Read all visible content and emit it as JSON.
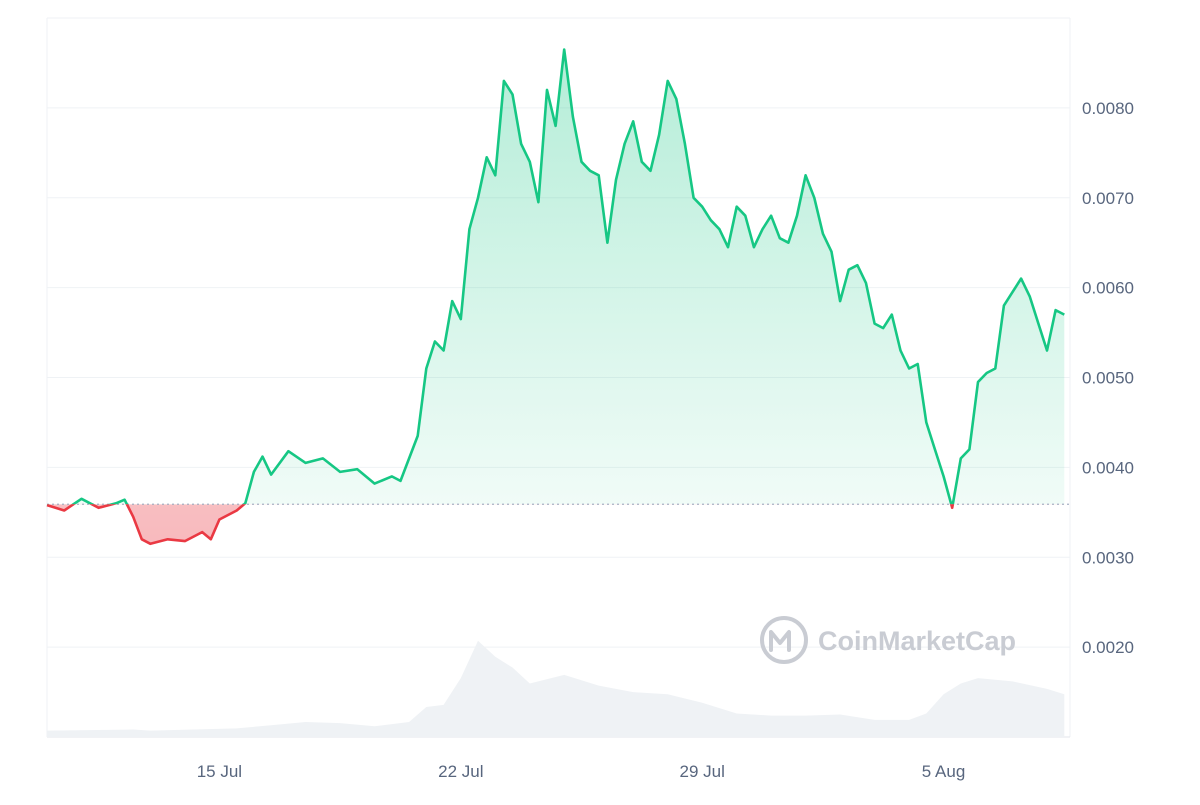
{
  "chart_data": {
    "type": "line",
    "title": "",
    "xlabel": "",
    "ylabel": "",
    "x_range": [
      "2024-07-10",
      "2024-08-08"
    ],
    "ylim": [
      0.001,
      0.009
    ],
    "y_ticks": [
      "0.0020",
      "0.0030",
      "0.0040",
      "0.0050",
      "0.0060",
      "0.0070",
      "0.0080"
    ],
    "x_ticks": [
      {
        "date": "2024-07-15",
        "label": "15 Jul"
      },
      {
        "date": "2024-07-22",
        "label": "22 Jul"
      },
      {
        "date": "2024-07-29",
        "label": "29 Jul"
      },
      {
        "date": "2024-08-05",
        "label": "5 Aug"
      }
    ],
    "baseline": 0.00359,
    "grid": true,
    "colors": {
      "up": "#16c784",
      "down": "#ea3943",
      "volume": "#eff2f5",
      "grid": "#eff2f5",
      "baseline": "#a6b0c3"
    },
    "watermark": "CoinMarketCap",
    "series": [
      {
        "points": [
          [
            "2024-07-10 00:00",
            0.00358
          ],
          [
            "2024-07-10 12:00",
            0.00352
          ],
          [
            "2024-07-11 00:00",
            0.00365
          ],
          [
            "2024-07-11 12:00",
            0.00355
          ],
          [
            "2024-07-12 00:00",
            0.0036
          ],
          [
            "2024-07-12 06:00",
            0.00364
          ],
          [
            "2024-07-12 12:00",
            0.00345
          ],
          [
            "2024-07-12 18:00",
            0.0032
          ],
          [
            "2024-07-13 00:00",
            0.00315
          ],
          [
            "2024-07-13 12:00",
            0.0032
          ],
          [
            "2024-07-14 00:00",
            0.00318
          ],
          [
            "2024-07-14 12:00",
            0.00328
          ],
          [
            "2024-07-14 18:00",
            0.0032
          ],
          [
            "2024-07-15 00:00",
            0.00342
          ],
          [
            "2024-07-15 12:00",
            0.00352
          ],
          [
            "2024-07-15 18:00",
            0.0036
          ],
          [
            "2024-07-16 00:00",
            0.00395
          ],
          [
            "2024-07-16 06:00",
            0.00412
          ],
          [
            "2024-07-16 12:00",
            0.00392
          ],
          [
            "2024-07-17 00:00",
            0.00418
          ],
          [
            "2024-07-17 12:00",
            0.00405
          ],
          [
            "2024-07-18 00:00",
            0.0041
          ],
          [
            "2024-07-18 12:00",
            0.00395
          ],
          [
            "2024-07-19 00:00",
            0.00398
          ],
          [
            "2024-07-19 12:00",
            0.00382
          ],
          [
            "2024-07-20 00:00",
            0.0039
          ],
          [
            "2024-07-20 06:00",
            0.00385
          ],
          [
            "2024-07-20 12:00",
            0.0041
          ],
          [
            "2024-07-20 18:00",
            0.00435
          ],
          [
            "2024-07-21 00:00",
            0.0051
          ],
          [
            "2024-07-21 06:00",
            0.0054
          ],
          [
            "2024-07-21 12:00",
            0.0053
          ],
          [
            "2024-07-21 18:00",
            0.00585
          ],
          [
            "2024-07-22 00:00",
            0.00565
          ],
          [
            "2024-07-22 06:00",
            0.00665
          ],
          [
            "2024-07-22 12:00",
            0.007
          ],
          [
            "2024-07-22 18:00",
            0.00745
          ],
          [
            "2024-07-23 00:00",
            0.00725
          ],
          [
            "2024-07-23 06:00",
            0.0083
          ],
          [
            "2024-07-23 12:00",
            0.00815
          ],
          [
            "2024-07-23 18:00",
            0.0076
          ],
          [
            "2024-07-24 00:00",
            0.0074
          ],
          [
            "2024-07-24 06:00",
            0.00695
          ],
          [
            "2024-07-24 12:00",
            0.0082
          ],
          [
            "2024-07-24 18:00",
            0.0078
          ],
          [
            "2024-07-25 00:00",
            0.00865
          ],
          [
            "2024-07-25 06:00",
            0.0079
          ],
          [
            "2024-07-25 12:00",
            0.0074
          ],
          [
            "2024-07-25 18:00",
            0.0073
          ],
          [
            "2024-07-26 00:00",
            0.00725
          ],
          [
            "2024-07-26 06:00",
            0.0065
          ],
          [
            "2024-07-26 12:00",
            0.0072
          ],
          [
            "2024-07-26 18:00",
            0.0076
          ],
          [
            "2024-07-27 00:00",
            0.00785
          ],
          [
            "2024-07-27 06:00",
            0.0074
          ],
          [
            "2024-07-27 12:00",
            0.0073
          ],
          [
            "2024-07-27 18:00",
            0.0077
          ],
          [
            "2024-07-28 00:00",
            0.0083
          ],
          [
            "2024-07-28 06:00",
            0.0081
          ],
          [
            "2024-07-28 12:00",
            0.0076
          ],
          [
            "2024-07-28 18:00",
            0.007
          ],
          [
            "2024-07-29 00:00",
            0.0069
          ],
          [
            "2024-07-29 06:00",
            0.00675
          ],
          [
            "2024-07-29 12:00",
            0.00665
          ],
          [
            "2024-07-29 18:00",
            0.00645
          ],
          [
            "2024-07-30 00:00",
            0.0069
          ],
          [
            "2024-07-30 06:00",
            0.0068
          ],
          [
            "2024-07-30 12:00",
            0.00645
          ],
          [
            "2024-07-30 18:00",
            0.00665
          ],
          [
            "2024-07-31 00:00",
            0.0068
          ],
          [
            "2024-07-31 06:00",
            0.00655
          ],
          [
            "2024-07-31 12:00",
            0.0065
          ],
          [
            "2024-07-31 18:00",
            0.0068
          ],
          [
            "2024-08-01 00:00",
            0.00725
          ],
          [
            "2024-08-01 06:00",
            0.007
          ],
          [
            "2024-08-01 12:00",
            0.0066
          ],
          [
            "2024-08-01 18:00",
            0.0064
          ],
          [
            "2024-08-02 00:00",
            0.00585
          ],
          [
            "2024-08-02 06:00",
            0.0062
          ],
          [
            "2024-08-02 12:00",
            0.00625
          ],
          [
            "2024-08-02 18:00",
            0.00605
          ],
          [
            "2024-08-03 00:00",
            0.0056
          ],
          [
            "2024-08-03 06:00",
            0.00555
          ],
          [
            "2024-08-03 12:00",
            0.0057
          ],
          [
            "2024-08-03 18:00",
            0.0053
          ],
          [
            "2024-08-04 00:00",
            0.0051
          ],
          [
            "2024-08-04 06:00",
            0.00515
          ],
          [
            "2024-08-04 12:00",
            0.0045
          ],
          [
            "2024-08-04 18:00",
            0.0042
          ],
          [
            "2024-08-05 00:00",
            0.0039
          ],
          [
            "2024-08-05 06:00",
            0.00355
          ],
          [
            "2024-08-05 12:00",
            0.0041
          ],
          [
            "2024-08-05 18:00",
            0.0042
          ],
          [
            "2024-08-06 00:00",
            0.00495
          ],
          [
            "2024-08-06 06:00",
            0.00505
          ],
          [
            "2024-08-06 12:00",
            0.0051
          ],
          [
            "2024-08-06 18:00",
            0.0058
          ],
          [
            "2024-08-07 00:00",
            0.00595
          ],
          [
            "2024-08-07 06:00",
            0.0061
          ],
          [
            "2024-08-07 12:00",
            0.0059
          ],
          [
            "2024-08-07 18:00",
            0.0056
          ],
          [
            "2024-08-08 00:00",
            0.0053
          ],
          [
            "2024-08-08 06:00",
            0.00575
          ],
          [
            "2024-08-08 12:00",
            0.0057
          ]
        ]
      }
    ],
    "volume_series": {
      "points": [
        [
          "2024-07-10 00:00",
          0.06
        ],
        [
          "2024-07-12 12:00",
          0.07
        ],
        [
          "2024-07-13 00:00",
          0.06
        ],
        [
          "2024-07-15 12:00",
          0.08
        ],
        [
          "2024-07-16 12:00",
          0.11
        ],
        [
          "2024-07-17 12:00",
          0.14
        ],
        [
          "2024-07-18 12:00",
          0.13
        ],
        [
          "2024-07-19 12:00",
          0.1
        ],
        [
          "2024-07-20 12:00",
          0.14
        ],
        [
          "2024-07-21 00:00",
          0.28
        ],
        [
          "2024-07-21 12:00",
          0.3
        ],
        [
          "2024-07-22 00:00",
          0.55
        ],
        [
          "2024-07-22 12:00",
          0.9
        ],
        [
          "2024-07-23 00:00",
          0.75
        ],
        [
          "2024-07-23 12:00",
          0.65
        ],
        [
          "2024-07-24 00:00",
          0.5
        ],
        [
          "2024-07-25 00:00",
          0.58
        ],
        [
          "2024-07-26 00:00",
          0.48
        ],
        [
          "2024-07-27 00:00",
          0.42
        ],
        [
          "2024-07-28 00:00",
          0.4
        ],
        [
          "2024-07-29 00:00",
          0.32
        ],
        [
          "2024-07-30 00:00",
          0.22
        ],
        [
          "2024-07-31 00:00",
          0.2
        ],
        [
          "2024-08-01 00:00",
          0.2
        ],
        [
          "2024-08-02 00:00",
          0.21
        ],
        [
          "2024-08-03 00:00",
          0.16
        ],
        [
          "2024-08-04 00:00",
          0.16
        ],
        [
          "2024-08-04 12:00",
          0.22
        ],
        [
          "2024-08-05 00:00",
          0.4
        ],
        [
          "2024-08-05 12:00",
          0.5
        ],
        [
          "2024-08-06 00:00",
          0.55
        ],
        [
          "2024-08-07 00:00",
          0.52
        ],
        [
          "2024-08-08 00:00",
          0.45
        ],
        [
          "2024-08-08 12:00",
          0.4
        ]
      ]
    }
  }
}
